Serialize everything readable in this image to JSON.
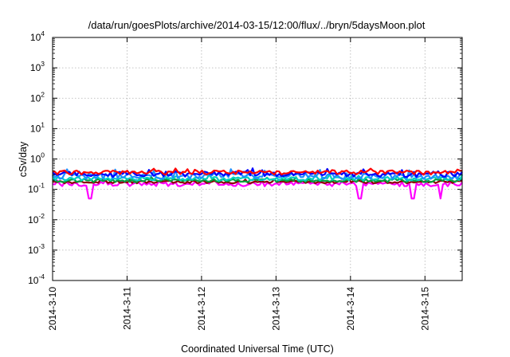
{
  "chart_data": {
    "type": "line",
    "title": "/data/run/goesPlots/archive/2014-03-15/12:00/flux/../bryn/5daysMoon.plot",
    "xlabel": "Coordinated Universal Time (UTC)",
    "ylabel": "cSv/day",
    "yscale": "log",
    "ylim": [
      0.0001,
      10000
    ],
    "xlim": [
      "2014-03-10",
      "2014-03-15 12:00"
    ],
    "grid": true,
    "x_tick_labels": [
      "2014-3-10",
      "2014-3-11",
      "2014-3-12",
      "2014-3-13",
      "2014-3-14",
      "2014-3-15"
    ],
    "y_tick_labels": [
      {
        "base": "10",
        "exp": "-4"
      },
      {
        "base": "10",
        "exp": "-3"
      },
      {
        "base": "10",
        "exp": "-2"
      },
      {
        "base": "10",
        "exp": "-1"
      },
      {
        "base": "10",
        "exp": "0"
      },
      {
        "base": "10",
        "exp": "1"
      },
      {
        "base": "10",
        "exp": "2"
      },
      {
        "base": "10",
        "exp": "3"
      },
      {
        "base": "10",
        "exp": "4"
      }
    ],
    "series": [
      {
        "color": "#ff0000",
        "level": 0.36,
        "noise": 0.16,
        "dips": []
      },
      {
        "color": "#0000ff",
        "level": 0.32,
        "noise": 0.2,
        "dips": []
      },
      {
        "color": "#1e90ff",
        "level": 0.28,
        "noise": 0.22,
        "dips": []
      },
      {
        "color": "#00d0c0",
        "level": 0.225,
        "noise": 0.14,
        "dips": []
      },
      {
        "color": "#00a040",
        "level": 0.195,
        "noise": 0.12,
        "dips": []
      },
      {
        "color": "#8b0000",
        "level": 0.175,
        "noise": 0.1,
        "dips": []
      },
      {
        "color": "#ff00ff",
        "level": 0.15,
        "noise": 0.16,
        "dips": [
          "2014-03-10 12:00",
          "2014-03-14 03:00",
          "2014-03-14 20:00",
          "2014-03-15 05:00"
        ]
      }
    ]
  }
}
